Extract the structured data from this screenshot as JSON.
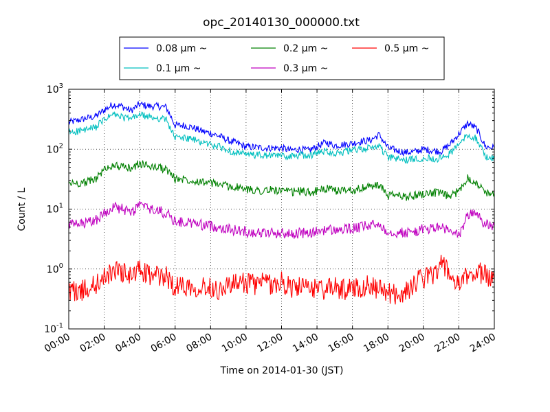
{
  "chart_data": {
    "type": "line",
    "title": "opc_20140130_000000.txt",
    "xlabel": "Time on 2014-01-30 (JST)",
    "ylabel": "Count / L",
    "yscale": "log",
    "ylim": [
      0.1,
      1000
    ],
    "xlim": [
      "00:00",
      "24:00"
    ],
    "grid": true,
    "legend_placement": "top-center, above plot",
    "x_tick_labels": [
      "00:00",
      "02:00",
      "04:00",
      "06:00",
      "08:00",
      "10:00",
      "12:00",
      "14:00",
      "16:00",
      "18:00",
      "20:00",
      "22:00",
      "24:00"
    ],
    "y_tick_labels": [
      {
        "base": "10",
        "exp": "-1"
      },
      {
        "base": "10",
        "exp": "0"
      },
      {
        "base": "10",
        "exp": "1"
      },
      {
        "base": "10",
        "exp": "2"
      },
      {
        "base": "10",
        "exp": "3"
      }
    ],
    "x_hours": [
      0,
      0.5,
      1,
      1.5,
      2,
      2.5,
      3,
      3.5,
      4,
      4.5,
      5,
      5.5,
      6,
      6.5,
      7,
      7.5,
      8,
      8.5,
      9,
      9.5,
      10,
      10.5,
      11,
      11.5,
      12,
      12.5,
      13,
      13.5,
      14,
      14.5,
      15,
      15.5,
      16,
      16.5,
      17,
      17.5,
      18,
      18.5,
      19,
      19.5,
      20,
      20.5,
      21,
      21.5,
      22,
      22.5,
      23,
      23.5,
      24
    ],
    "series": [
      {
        "name": "0.08 μm ~",
        "color": "#0000ff",
        "values": [
          280,
          300,
          330,
          350,
          450,
          560,
          520,
          440,
          560,
          520,
          520,
          500,
          250,
          250,
          230,
          200,
          185,
          165,
          140,
          125,
          110,
          108,
          105,
          105,
          105,
          95,
          100,
          95,
          110,
          130,
          115,
          120,
          125,
          135,
          140,
          175,
          105,
          95,
          88,
          90,
          100,
          95,
          92,
          120,
          180,
          270,
          220,
          110,
          105
        ]
      },
      {
        "name": "0.1 μm ~",
        "color": "#00bfbf",
        "values": [
          190,
          200,
          210,
          230,
          310,
          380,
          340,
          320,
          380,
          340,
          330,
          310,
          155,
          155,
          145,
          130,
          120,
          110,
          95,
          88,
          80,
          80,
          78,
          78,
          78,
          75,
          80,
          78,
          85,
          95,
          85,
          90,
          95,
          100,
          105,
          115,
          72,
          70,
          65,
          68,
          72,
          70,
          70,
          85,
          120,
          175,
          150,
          75,
          70
        ]
      },
      {
        "name": "0.2 μm ~",
        "color": "#008000",
        "values": [
          27,
          27,
          28,
          32,
          45,
          55,
          50,
          48,
          58,
          52,
          50,
          46,
          32,
          32,
          30,
          29,
          27,
          26,
          24,
          23,
          21,
          21,
          20,
          21,
          20,
          19,
          20,
          19,
          20,
          22,
          20,
          21,
          21,
          22,
          24,
          25,
          17,
          17,
          16,
          17,
          18,
          19,
          18,
          16,
          20,
          34,
          27,
          19,
          18
        ]
      },
      {
        "name": "0.3 μm ~",
        "color": "#bf00bf",
        "values": [
          5.5,
          5.5,
          5.8,
          6.5,
          8.5,
          11,
          10,
          8.5,
          12,
          10,
          9.5,
          8.5,
          6.2,
          6,
          5.8,
          5.5,
          5.2,
          5,
          4.6,
          4.4,
          4.2,
          4.1,
          4,
          4,
          4,
          3.8,
          4,
          3.9,
          4.2,
          4.6,
          4.4,
          4.6,
          4.7,
          5,
          5.3,
          5.6,
          4.2,
          4.1,
          4,
          4.2,
          4.6,
          4.8,
          5,
          4.2,
          3.6,
          8,
          8.8,
          5.4,
          5.2
        ]
      },
      {
        "name": "0.5 μm ~",
        "color": "#ff0000",
        "values": [
          0.45,
          0.42,
          0.45,
          0.55,
          0.7,
          0.95,
          0.9,
          0.75,
          0.95,
          0.8,
          0.75,
          0.75,
          0.5,
          0.55,
          0.5,
          0.52,
          0.5,
          0.45,
          0.55,
          0.55,
          0.6,
          0.55,
          0.6,
          0.55,
          0.6,
          0.5,
          0.5,
          0.45,
          0.5,
          0.45,
          0.5,
          0.45,
          0.5,
          0.5,
          0.55,
          0.45,
          0.4,
          0.38,
          0.4,
          0.6,
          0.7,
          0.8,
          1.25,
          0.8,
          0.5,
          0.8,
          0.9,
          0.8,
          0.65
        ]
      }
    ]
  }
}
